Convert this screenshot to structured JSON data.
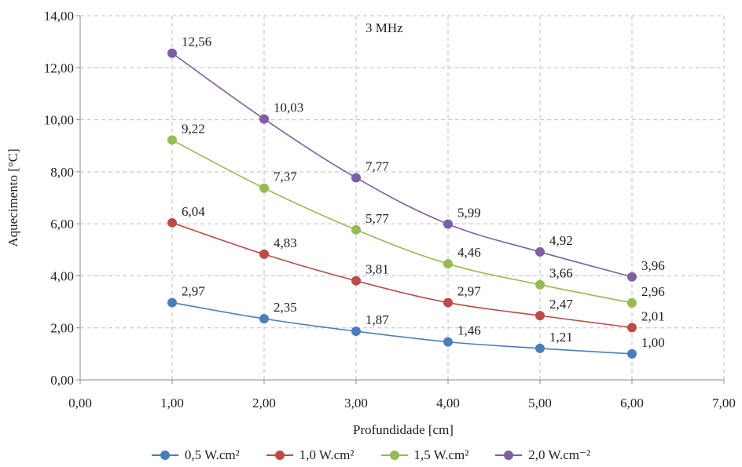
{
  "chart_data": {
    "type": "line",
    "annotation": "3 MHz",
    "xlabel": "Profundidade [cm]",
    "ylabel": "Aquecimento [°C]",
    "xlim": [
      0,
      7
    ],
    "ylim": [
      0,
      14
    ],
    "x_ticks": [
      "0,00",
      "1,00",
      "2,00",
      "3,00",
      "4,00",
      "5,00",
      "6,00",
      "7,00"
    ],
    "y_ticks": [
      "0,00",
      "2,00",
      "4,00",
      "6,00",
      "8,00",
      "10,00",
      "12,00",
      "14,00"
    ],
    "grid": true,
    "legend_position": "bottom",
    "x": [
      1,
      2,
      3,
      4,
      5,
      6
    ],
    "series": [
      {
        "name": "0,5 W.cm²",
        "color": "#4a7ebb",
        "values": [
          2.97,
          2.35,
          1.87,
          1.46,
          1.21,
          1.0
        ],
        "labels": [
          "2,97",
          "2,35",
          "1,87",
          "1,46",
          "1,21",
          "1,00"
        ]
      },
      {
        "name": "1,0 W.cm²",
        "color": "#be4b48",
        "values": [
          6.04,
          4.83,
          3.81,
          2.97,
          2.47,
          2.01
        ],
        "labels": [
          "6,04",
          "4,83",
          "3,81",
          "2,97",
          "2,47",
          "2,01"
        ]
      },
      {
        "name": "1,5 W.cm²",
        "color": "#98b954",
        "values": [
          9.22,
          7.37,
          5.77,
          4.46,
          3.66,
          2.96
        ],
        "labels": [
          "9,22",
          "7,37",
          "5,77",
          "4,46",
          "3,66",
          "2,96"
        ]
      },
      {
        "name": "2,0 W.cm⁻²",
        "color": "#7d60a0",
        "values": [
          12.56,
          10.03,
          7.77,
          5.99,
          4.92,
          3.96
        ],
        "labels": [
          "12,56",
          "10,03",
          "7,77",
          "5,99",
          "4,92",
          "3,96"
        ]
      }
    ]
  }
}
